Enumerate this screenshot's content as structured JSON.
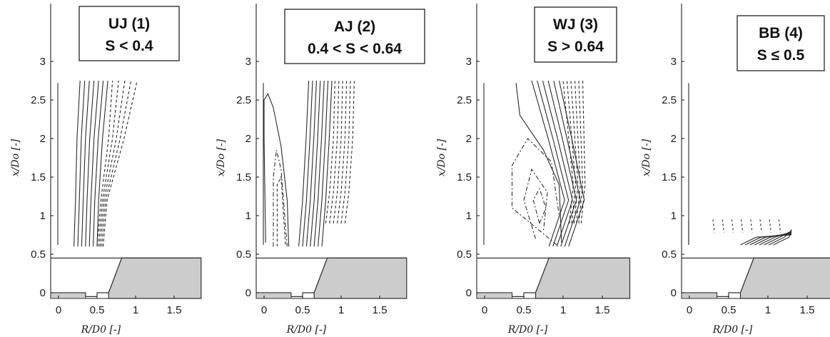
{
  "chart_data": [
    {
      "type": "contour",
      "title_line1": "UJ (1)",
      "title_line2": "S < 0.4",
      "xlabel": "R/D0 [-]",
      "ylabel": "x/Do [-]",
      "xticks": [
        "0",
        "0.5",
        "1",
        "1.5"
      ],
      "yticks": [
        "0",
        "0.5",
        "1",
        "1.5",
        "2",
        "2.5",
        "3"
      ],
      "xlim": [
        -0.1,
        1.85
      ],
      "ylim": [
        -0.05,
        3.4
      ],
      "data_window": {
        "r": [
          0,
          1.25
        ],
        "x": [
          0.6,
          2.75
        ]
      }
    },
    {
      "type": "contour",
      "title_line1": "AJ (2)",
      "title_line2": "0.4 < S < 0.64",
      "xlabel": "R/D0 [-]",
      "ylabel": "x/Do [-]",
      "xticks": [
        "0",
        "0.5",
        "1",
        "1.5"
      ],
      "yticks": [
        "0",
        "0.5",
        "1",
        "1.5",
        "2",
        "2.5",
        "3"
      ],
      "xlim": [
        -0.1,
        1.85
      ],
      "ylim": [
        -0.05,
        3.4
      ],
      "data_window": {
        "r": [
          0,
          1.25
        ],
        "x": [
          0.6,
          2.75
        ]
      }
    },
    {
      "type": "contour",
      "title_line1": "WJ (3)",
      "title_line2": "S > 0.64",
      "xlabel": "R/D0 [-]",
      "ylabel": "x/Do [-]",
      "xticks": [
        "0",
        "0.5",
        "1",
        "1.5"
      ],
      "yticks": [
        "0",
        "0.5",
        "1",
        "1.5",
        "2",
        "2.5",
        "3"
      ],
      "xlim": [
        -0.1,
        1.85
      ],
      "ylim": [
        -0.05,
        3.4
      ],
      "data_window": {
        "r": [
          0,
          1.25
        ],
        "x": [
          0.6,
          2.75
        ]
      }
    },
    {
      "type": "contour",
      "title_line1": "BB (4)",
      "title_line2": "S ≤ 0.5",
      "xlabel": "R/D0 [-]",
      "ylabel": "x/Do [-]",
      "xticks": [
        "0",
        "0.5",
        "1",
        "1.5"
      ],
      "yticks": [
        "0",
        "0.5",
        "1",
        "1.5",
        "2",
        "2.5",
        "3"
      ],
      "xlim": [
        -0.1,
        1.85
      ],
      "ylim": [
        -0.05,
        3.4
      ],
      "data_window": {
        "r": [
          0,
          1.3
        ],
        "x": [
          0.6,
          0.97
        ]
      }
    }
  ],
  "colors": {
    "wall_fill": "#cccccc",
    "line": "#2b2b2b"
  },
  "burner_geometry": {
    "profile_r": [
      -0.1,
      0.35,
      0.35,
      0.5,
      0.5,
      0.65,
      0.82,
      1.85
    ],
    "profile_x": [
      0,
      0,
      -0.05,
      -0.05,
      0,
      0,
      0.45,
      0.45
    ]
  }
}
